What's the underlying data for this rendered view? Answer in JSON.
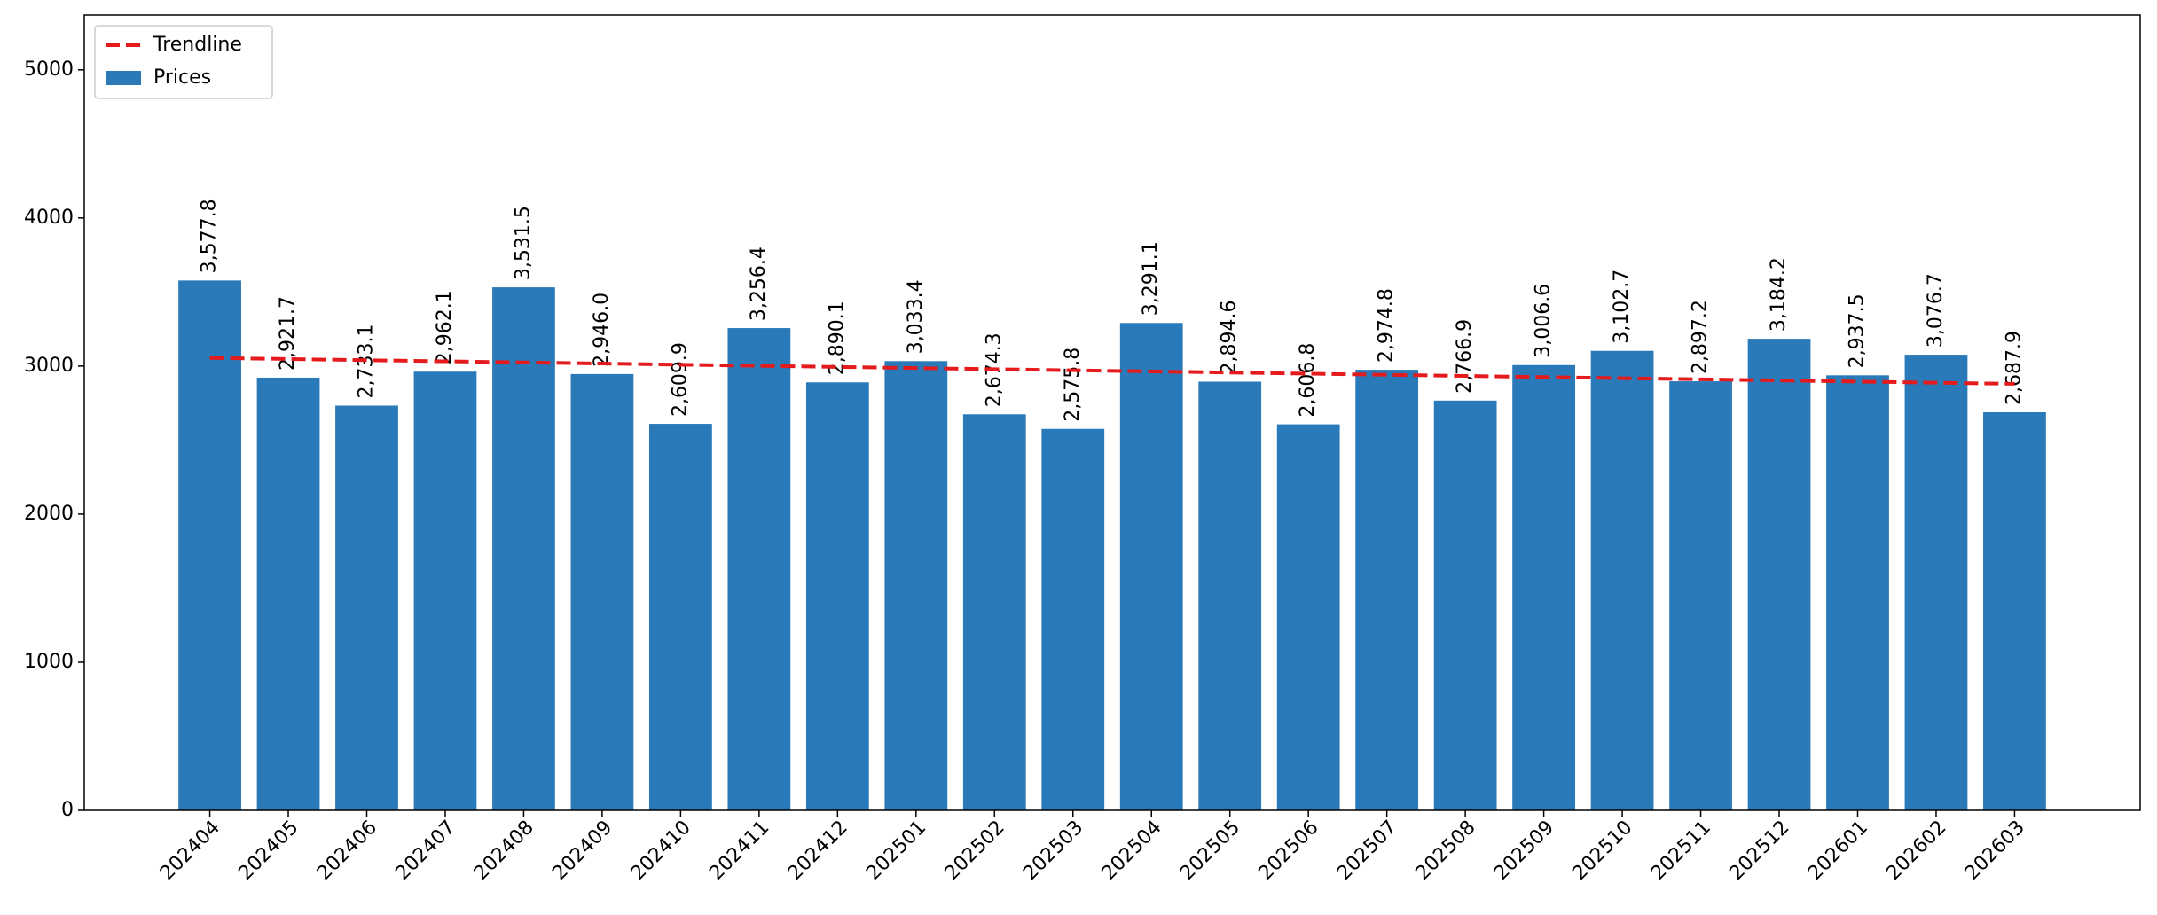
{
  "chart_data": {
    "type": "bar",
    "categories": [
      "202404",
      "202405",
      "202406",
      "202407",
      "202408",
      "202409",
      "202410",
      "202411",
      "202412",
      "202501",
      "202502",
      "202503",
      "202504",
      "202505",
      "202506",
      "202507",
      "202508",
      "202509",
      "202510",
      "202511",
      "202512",
      "202601",
      "202602",
      "202603"
    ],
    "series": [
      {
        "name": "Trendline",
        "type": "line",
        "color": "#e41a1c",
        "values": [
          3055,
          3047.4,
          3039.8,
          3032.2,
          3024.6,
          3017,
          3009.3,
          3001.7,
          2994.1,
          2986.5,
          2978.9,
          2971.3,
          2963.7,
          2956.1,
          2948.5,
          2940.9,
          2933.3,
          2925.7,
          2918,
          2910.4,
          2902.8,
          2895.2,
          2887.6,
          2880
        ]
      },
      {
        "name": "Prices",
        "type": "bar",
        "color": "#2a7ab9",
        "values": [
          3577.8,
          2921.7,
          2733.1,
          2962.1,
          3531.5,
          2946.0,
          2609.9,
          3256.4,
          2890.1,
          3033.4,
          2674.3,
          2575.8,
          3291.1,
          2894.6,
          2606.8,
          2974.8,
          2766.9,
          3006.6,
          3102.7,
          2897.2,
          3184.2,
          2937.5,
          3076.7,
          2687.9
        ],
        "value_labels": [
          "3,577.8",
          "2,921.7",
          "2,733.1",
          "2,962.1",
          "3,531.5",
          "2,946.0",
          "2,609.9",
          "3,256.4",
          "2,890.1",
          "3,033.4",
          "2,674.3",
          "2,575.8",
          "3,291.1",
          "2,894.6",
          "2,606.8",
          "2,974.8",
          "2,766.9",
          "3,006.6",
          "3,102.7",
          "2,897.2",
          "3,184.2",
          "2,937.5",
          "3,076.7",
          "2,687.9"
        ]
      }
    ],
    "ylim": [
      0,
      5370
    ],
    "yticks": [
      0,
      1000,
      2000,
      3000,
      4000,
      5000
    ],
    "legend": "upper left"
  }
}
